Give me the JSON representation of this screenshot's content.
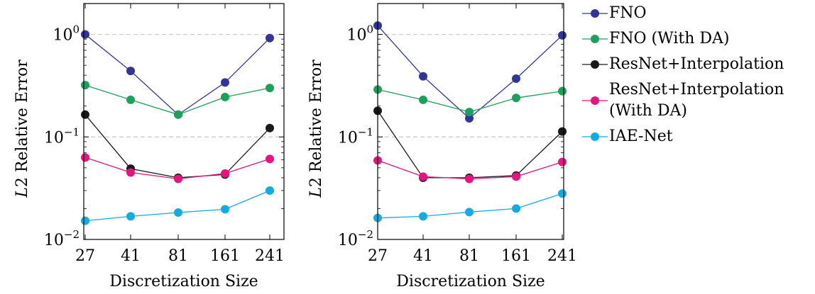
{
  "chart_data": [
    {
      "type": "line",
      "yscale": "log",
      "ylim": [
        0.01,
        2.0
      ],
      "grid": "horizontal dashed at major ticks",
      "xlabel": "Discretization Size",
      "ylabel": "L2 Relative Error",
      "ylabel_italic_prefix": "L",
      "ylabel_rest": "2 Relative Error",
      "categories": [
        "27",
        "41",
        "81",
        "161",
        "241"
      ],
      "yticks": [
        {
          "value": 1,
          "base": "10",
          "exp": "0"
        },
        {
          "value": 0.1,
          "base": "10",
          "exp": "−1"
        },
        {
          "value": 0.01,
          "base": "10",
          "exp": "−2"
        }
      ],
      "series": [
        {
          "name": "FNO",
          "color": "#323597",
          "values": [
            1.0,
            0.44,
            0.165,
            0.34,
            0.92
          ]
        },
        {
          "name": "FNO (With DA)",
          "color": "#1BA15A",
          "values": [
            0.32,
            0.23,
            0.165,
            0.245,
            0.3
          ]
        },
        {
          "name": "ResNet+Interpolation",
          "color": "#1A1A1A",
          "values": [
            0.165,
            0.049,
            0.04,
            0.043,
            0.122
          ]
        },
        {
          "name": "ResNet+Interpolation (With DA)",
          "color": "#E6147E",
          "values": [
            0.063,
            0.045,
            0.039,
            0.044,
            0.061
          ]
        },
        {
          "name": "IAE-Net",
          "color": "#12ACE0",
          "values": [
            0.0152,
            0.0168,
            0.0183,
            0.0197,
            0.03
          ]
        }
      ]
    },
    {
      "type": "line",
      "yscale": "log",
      "ylim": [
        0.01,
        2.0
      ],
      "grid": "horizontal dashed at major ticks",
      "xlabel": "Discretization Size",
      "ylabel": "L2 Relative Error",
      "ylabel_italic_prefix": "L",
      "ylabel_rest": "2 Relative Error",
      "categories": [
        "27",
        "41",
        "81",
        "161",
        "241"
      ],
      "yticks": [
        {
          "value": 1,
          "base": "10",
          "exp": "0"
        },
        {
          "value": 0.1,
          "base": "10",
          "exp": "−1"
        },
        {
          "value": 0.01,
          "base": "10",
          "exp": "−2"
        }
      ],
      "series": [
        {
          "name": "FNO",
          "color": "#323597",
          "values": [
            1.22,
            0.39,
            0.152,
            0.37,
            0.98
          ]
        },
        {
          "name": "FNO (With DA)",
          "color": "#1BA15A",
          "values": [
            0.29,
            0.23,
            0.175,
            0.24,
            0.28
          ]
        },
        {
          "name": "ResNet+Interpolation",
          "color": "#1A1A1A",
          "values": [
            0.18,
            0.04,
            0.04,
            0.042,
            0.113
          ]
        },
        {
          "name": "ResNet+Interpolation (With DA)",
          "color": "#E6147E",
          "values": [
            0.059,
            0.041,
            0.039,
            0.041,
            0.057
          ]
        },
        {
          "name": "IAE-Net",
          "color": "#12ACE0",
          "values": [
            0.0162,
            0.0168,
            0.0185,
            0.02,
            0.028
          ]
        }
      ]
    }
  ],
  "legend": {
    "placement": "right",
    "items": [
      {
        "lines": [
          "FNO"
        ],
        "color": "#323597"
      },
      {
        "lines": [
          "FNO (With DA)"
        ],
        "color": "#1BA15A"
      },
      {
        "lines": [
          "ResNet+Interpolation"
        ],
        "color": "#1A1A1A"
      },
      {
        "lines": [
          "ResNet+Interpolation",
          "(With DA)"
        ],
        "color": "#E6147E"
      },
      {
        "lines": [
          "IAE-Net"
        ],
        "color": "#12ACE0"
      }
    ]
  }
}
